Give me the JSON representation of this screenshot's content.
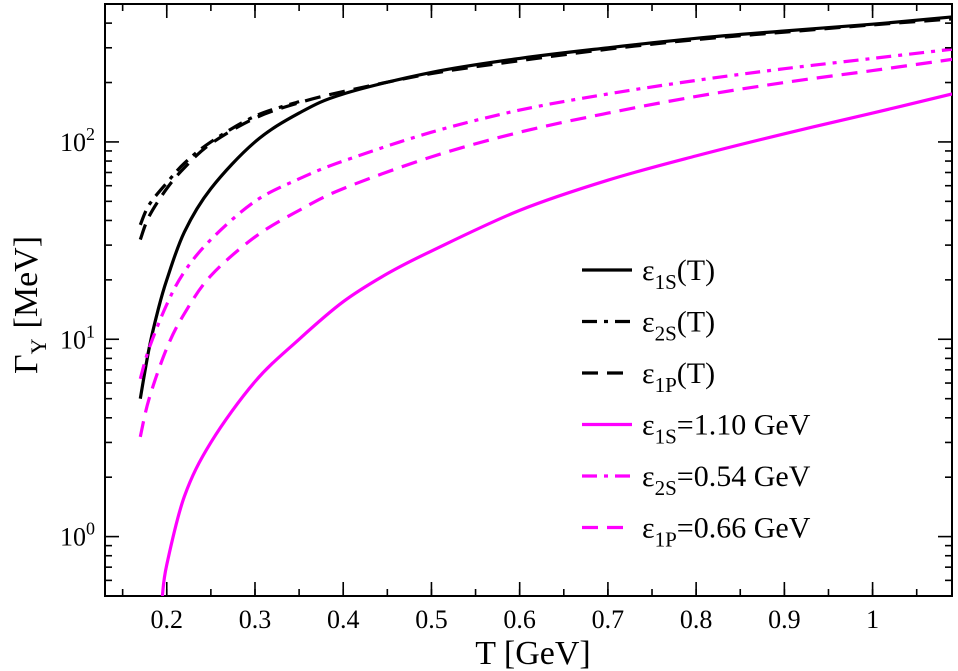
{
  "chart_data": {
    "type": "line",
    "title": "",
    "xlabel": "T  [GeV]",
    "ylabel_main": "Γ",
    "ylabel_sub": "Υ",
    "ylabel_unit": "[MeV]",
    "x_scale": "linear",
    "y_scale": "log",
    "xlim": [
      0.13,
      1.09
    ],
    "ylim": [
      0.5,
      500
    ],
    "grid": false,
    "legend_position": "lower-right",
    "x_ticks": [
      {
        "value": 0.2,
        "label": "0.2"
      },
      {
        "value": 0.3,
        "label": "0.3"
      },
      {
        "value": 0.4,
        "label": "0.4"
      },
      {
        "value": 0.5,
        "label": "0.5"
      },
      {
        "value": 0.6,
        "label": "0.6"
      },
      {
        "value": 0.7,
        "label": "0.7"
      },
      {
        "value": 0.8,
        "label": "0.8"
      },
      {
        "value": 0.9,
        "label": "0.9"
      },
      {
        "value": 1.0,
        "label": "1"
      }
    ],
    "y_ticks": [
      {
        "value": 1,
        "base": "10",
        "exp": "0"
      },
      {
        "value": 10,
        "base": "10",
        "exp": "1"
      },
      {
        "value": 100,
        "base": "10",
        "exp": "2"
      }
    ],
    "series": [
      {
        "label_main": "ε",
        "label_sub": "1S",
        "label_rest": "(T)",
        "color": "#000000",
        "dash": "solid",
        "x": [
          0.17,
          0.18,
          0.19,
          0.2,
          0.22,
          0.25,
          0.3,
          0.35,
          0.4,
          0.5,
          0.6,
          0.7,
          0.8,
          0.9,
          1.0,
          1.09
        ],
        "y": [
          5.0,
          9.0,
          14,
          20,
          35,
          58,
          100,
          140,
          175,
          225,
          265,
          300,
          335,
          365,
          395,
          430
        ]
      },
      {
        "label_main": "ε",
        "label_sub": "2S",
        "label_rest": "(T)",
        "color": "#000000",
        "dash": "dashdot",
        "x": [
          0.17,
          0.18,
          0.2,
          0.22,
          0.25,
          0.3,
          0.35
        ],
        "y": [
          38,
          48,
          62,
          78,
          100,
          135,
          160
        ]
      },
      {
        "label_main": "ε",
        "label_sub": "1P",
        "label_rest": "(T)",
        "color": "#000000",
        "dash": "dashed",
        "x": [
          0.17,
          0.18,
          0.2,
          0.22,
          0.25,
          0.3,
          0.35,
          0.4,
          0.5,
          0.6,
          0.7,
          0.8,
          0.9,
          1.0,
          1.09
        ],
        "y": [
          32,
          42,
          58,
          74,
          98,
          132,
          158,
          180,
          222,
          258,
          295,
          330,
          360,
          392,
          420
        ]
      },
      {
        "label_main": "ε",
        "label_sub": "1S",
        "label_rest": "=1.10 GeV",
        "color": "#ff00ff",
        "dash": "solid",
        "x": [
          0.195,
          0.2,
          0.22,
          0.25,
          0.3,
          0.35,
          0.4,
          0.45,
          0.5,
          0.6,
          0.7,
          0.8,
          0.9,
          1.0,
          1.09
        ],
        "y": [
          0.5,
          0.72,
          1.6,
          3.0,
          6.1,
          10.0,
          15.5,
          21.5,
          28,
          45,
          64,
          85,
          110,
          140,
          175
        ]
      },
      {
        "label_main": "ε",
        "label_sub": "2S",
        "label_rest": "=0.54 GeV",
        "color": "#ff00ff",
        "dash": "dashdot",
        "x": [
          0.17,
          0.18,
          0.2,
          0.22,
          0.25,
          0.3,
          0.35,
          0.4,
          0.5,
          0.6,
          0.7,
          0.8,
          0.9,
          1.0,
          1.09
        ],
        "y": [
          6.3,
          9.0,
          15,
          22,
          32,
          50,
          65,
          80,
          112,
          145,
          175,
          205,
          235,
          265,
          295
        ]
      },
      {
        "label_main": "ε",
        "label_sub": "1P",
        "label_rest": "=0.66 GeV",
        "color": "#ff00ff",
        "dash": "dashed",
        "x": [
          0.17,
          0.18,
          0.2,
          0.22,
          0.25,
          0.3,
          0.35,
          0.4,
          0.5,
          0.6,
          0.7,
          0.8,
          0.9,
          1.0,
          1.09
        ],
        "y": [
          3.2,
          5.0,
          9.0,
          13.5,
          21,
          33,
          45,
          58,
          84,
          112,
          140,
          170,
          200,
          230,
          262
        ]
      }
    ]
  }
}
